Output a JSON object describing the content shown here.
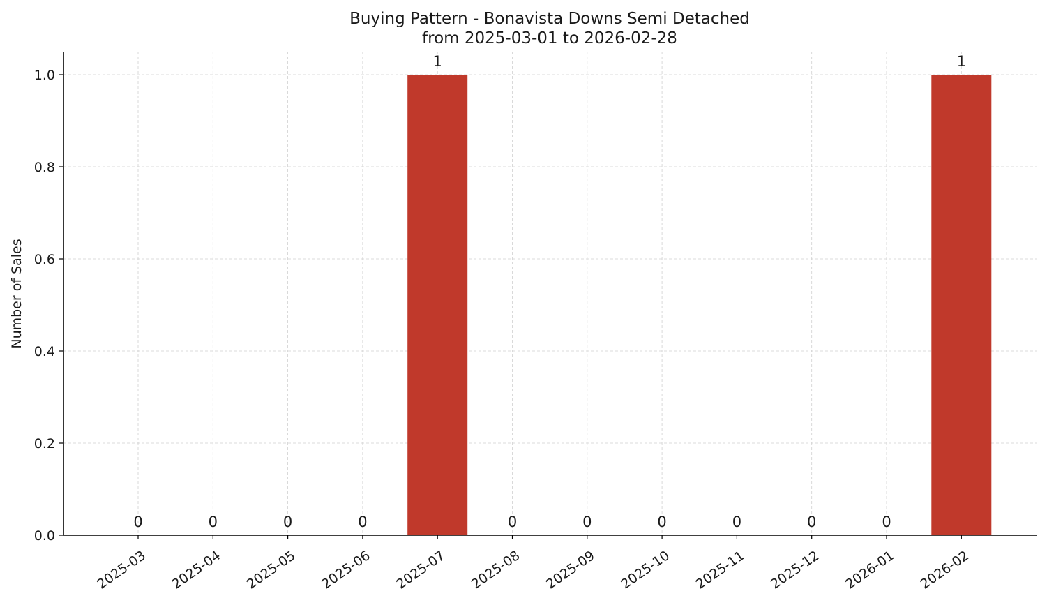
{
  "chart_data": {
    "type": "bar",
    "title": "Buying Pattern - Bonavista Downs Semi Detached",
    "subtitle": "from 2025-03-01 to 2026-02-28",
    "xlabel": "",
    "ylabel": "Number of Sales",
    "categories": [
      "2025-03",
      "2025-04",
      "2025-05",
      "2025-06",
      "2025-07",
      "2025-08",
      "2025-09",
      "2025-10",
      "2025-11",
      "2025-12",
      "2026-01",
      "2026-02"
    ],
    "values": [
      0,
      0,
      0,
      0,
      1,
      0,
      0,
      0,
      0,
      0,
      0,
      1
    ],
    "data_labels": [
      "0",
      "0",
      "0",
      "0",
      "1",
      "0",
      "0",
      "0",
      "0",
      "0",
      "0",
      "1"
    ],
    "ylim": [
      0,
      1.05
    ],
    "y_ticks": [
      0.0,
      0.2,
      0.4,
      0.6,
      0.8,
      1.0
    ],
    "y_tick_labels": [
      "0.0",
      "0.2",
      "0.4",
      "0.6",
      "0.8",
      "1.0"
    ],
    "grid": true,
    "bar_color": "#c0392b"
  }
}
